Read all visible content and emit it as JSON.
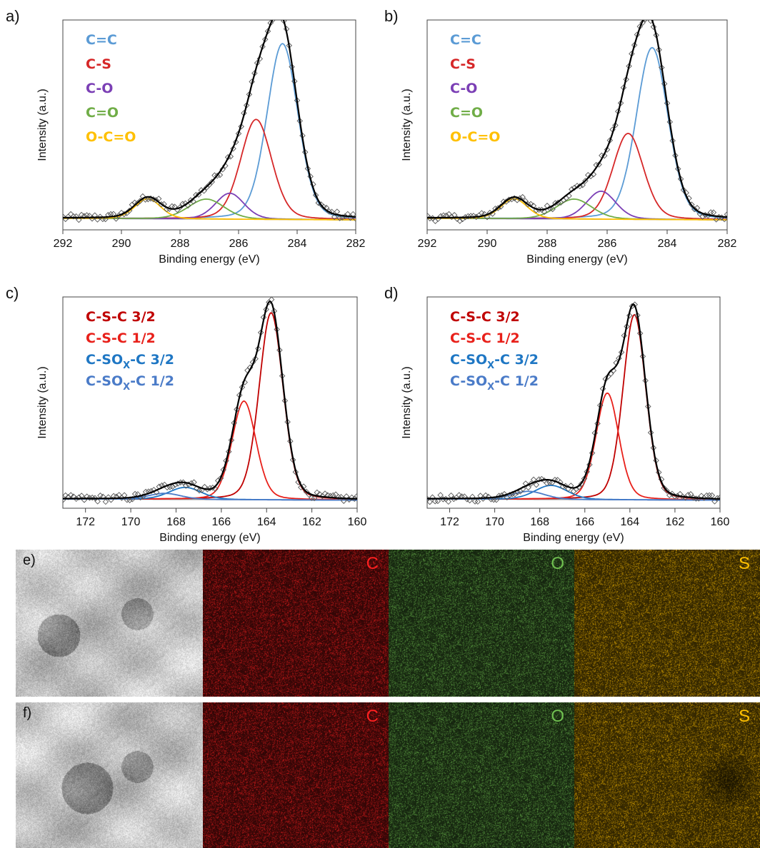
{
  "colors": {
    "cc": "#5b9bd5",
    "cs": "#d62728",
    "co": "#7b3fb5",
    "c_o": "#70ad47",
    "oco": "#ffc000",
    "csc32": "#c00000",
    "csc12": "#e8201a",
    "csox32": "#1f77c4",
    "csox12": "#4a7bc8",
    "envelope": "#000000",
    "background_line": "#999999",
    "raw": "#555555",
    "map_C": "#ff2020",
    "map_O": "#70c050",
    "map_S": "#ffc000"
  },
  "panels": [
    {
      "letter": "a)",
      "legend": [
        {
          "text": "C=C",
          "color": "#5b9bd5"
        },
        {
          "text": "C-S",
          "color": "#d62728"
        },
        {
          "text": "C-O",
          "color": "#7b3fb5"
        },
        {
          "text": "C=O",
          "color": "#70ad47"
        },
        {
          "text": "O-C=O",
          "color": "#ffc000"
        }
      ]
    },
    {
      "letter": "b)",
      "legend": [
        {
          "text": "C=C",
          "color": "#5b9bd5"
        },
        {
          "text": "C-S",
          "color": "#d62728"
        },
        {
          "text": "C-O",
          "color": "#7b3fb5"
        },
        {
          "text": "C=O",
          "color": "#70ad47"
        },
        {
          "text": "O-C=O",
          "color": "#ffc000"
        }
      ]
    },
    {
      "letter": "c)",
      "legend": [
        {
          "text": "C-S-C 3/2",
          "color": "#c00000"
        },
        {
          "text": "C-S-C 1/2",
          "color": "#e8201a"
        },
        {
          "pre": "C-SO",
          "sub": "X",
          "post": "-C 3/2",
          "color": "#1f77c4"
        },
        {
          "pre": "C-SO",
          "sub": "X",
          "post": "-C 1/2",
          "color": "#4a7bc8"
        }
      ]
    },
    {
      "letter": "d)",
      "legend": [
        {
          "text": "C-S-C 3/2",
          "color": "#c00000"
        },
        {
          "text": "C-S-C 1/2",
          "color": "#e8201a"
        },
        {
          "pre": "C-SO",
          "sub": "X",
          "post": "-C 3/2",
          "color": "#1f77c4"
        },
        {
          "pre": "C-SO",
          "sub": "X",
          "post": "-C 1/2",
          "color": "#4a7bc8"
        }
      ]
    }
  ],
  "chart_data": [
    {
      "id": "a",
      "type": "line",
      "xlabel": "Binding energy (eV)",
      "ylabel": "Intensity (a.u.)",
      "xlim": [
        292,
        282
      ],
      "x_reversed": true,
      "xticks": [
        292,
        290,
        288,
        286,
        284,
        282
      ],
      "ylim": [
        0,
        1.05
      ],
      "baseline": 0.05,
      "peaks": [
        {
          "name": "C=C",
          "center": 284.5,
          "height": 0.88,
          "fwhm": 1.25,
          "color": "#5b9bd5"
        },
        {
          "name": "C-S",
          "center": 285.4,
          "height": 0.5,
          "fwhm": 1.25,
          "color": "#d62728"
        },
        {
          "name": "C-O",
          "center": 286.3,
          "height": 0.13,
          "fwhm": 1.15,
          "color": "#7b3fb5"
        },
        {
          "name": "C=O",
          "center": 287.1,
          "height": 0.1,
          "fwhm": 1.45,
          "color": "#70ad47"
        },
        {
          "name": "O-C=O",
          "center": 289.1,
          "height": 0.1,
          "fwhm": 1.05,
          "color": "#ffc000"
        }
      ]
    },
    {
      "id": "b",
      "type": "line",
      "xlabel": "Binding energy (eV)",
      "ylabel": "Intensity (a.u.)",
      "xlim": [
        292,
        282
      ],
      "x_reversed": true,
      "xticks": [
        292,
        290,
        288,
        286,
        284,
        282
      ],
      "ylim": [
        0,
        1.05
      ],
      "baseline": 0.05,
      "peaks": [
        {
          "name": "C=C",
          "center": 284.5,
          "height": 0.86,
          "fwhm": 1.25,
          "color": "#5b9bd5"
        },
        {
          "name": "C-S",
          "center": 285.3,
          "height": 0.43,
          "fwhm": 1.2,
          "color": "#d62728"
        },
        {
          "name": "C-O",
          "center": 286.2,
          "height": 0.14,
          "fwhm": 1.15,
          "color": "#7b3fb5"
        },
        {
          "name": "C=O",
          "center": 287.1,
          "height": 0.1,
          "fwhm": 1.4,
          "color": "#70ad47"
        },
        {
          "name": "O-C=O",
          "center": 289.1,
          "height": 0.1,
          "fwhm": 1.05,
          "color": "#ffc000"
        }
      ]
    },
    {
      "id": "c",
      "type": "line",
      "xlabel": "Binding energy (eV)",
      "ylabel": "Intensity (a.u.)",
      "xlim": [
        173,
        160
      ],
      "x_reversed": true,
      "xticks": [
        172,
        170,
        168,
        166,
        164,
        162,
        160
      ],
      "ylim": [
        0,
        1.05
      ],
      "baseline": 0.04,
      "peaks": [
        {
          "name": "C-S-C 3/2",
          "center": 163.8,
          "height": 0.93,
          "fwhm": 1.25,
          "color": "#c00000"
        },
        {
          "name": "C-S-C 1/2",
          "center": 165.0,
          "height": 0.49,
          "fwhm": 1.25,
          "color": "#e8201a"
        },
        {
          "name": "C-SOX-C 3/2",
          "center": 167.6,
          "height": 0.06,
          "fwhm": 1.7,
          "color": "#1f77c4"
        },
        {
          "name": "C-SOX-C 1/2",
          "center": 168.5,
          "height": 0.03,
          "fwhm": 1.7,
          "color": "#4a7bc8"
        }
      ]
    },
    {
      "id": "d",
      "type": "line",
      "xlabel": "Binding energy (eV)",
      "ylabel": "Intensity (a.u.)",
      "xlim": [
        173,
        160
      ],
      "x_reversed": true,
      "xticks": [
        172,
        170,
        168,
        166,
        164,
        162,
        160
      ],
      "ylim": [
        0,
        1.05
      ],
      "baseline": 0.04,
      "peaks": [
        {
          "name": "C-S-C 3/2",
          "center": 163.8,
          "height": 0.92,
          "fwhm": 1.2,
          "color": "#c00000"
        },
        {
          "name": "C-S-C 1/2",
          "center": 165.0,
          "height": 0.53,
          "fwhm": 1.2,
          "color": "#e8201a"
        },
        {
          "name": "C-SOX-C 3/2",
          "center": 167.5,
          "height": 0.07,
          "fwhm": 1.7,
          "color": "#1f77c4"
        },
        {
          "name": "C-SOX-C 1/2",
          "center": 168.5,
          "height": 0.04,
          "fwhm": 1.7,
          "color": "#4a7bc8"
        }
      ]
    }
  ],
  "maps": [
    {
      "letter": "e)",
      "tiles": [
        {
          "kind": "sem",
          "label": ""
        },
        {
          "kind": "elem",
          "label": "C",
          "color": "#ff2020"
        },
        {
          "kind": "elem",
          "label": "O",
          "color": "#70c050"
        },
        {
          "kind": "elem",
          "label": "S",
          "color": "#ffc000"
        }
      ]
    },
    {
      "letter": "f)",
      "tiles": [
        {
          "kind": "sem",
          "label": ""
        },
        {
          "kind": "elem",
          "label": "C",
          "color": "#ff2020"
        },
        {
          "kind": "elem",
          "label": "O",
          "color": "#70c050"
        },
        {
          "kind": "elem",
          "label": "S",
          "color": "#ffc000"
        }
      ]
    }
  ]
}
